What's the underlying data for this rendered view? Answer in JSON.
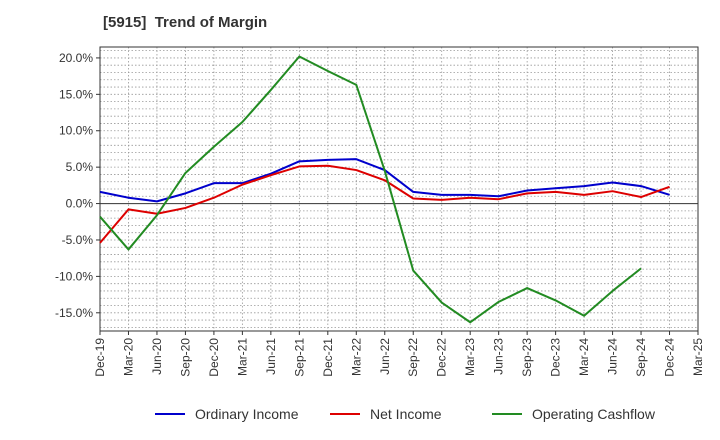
{
  "chart_data": {
    "type": "line",
    "title": "[5915]  Trend of Margin",
    "xlabel": "",
    "ylabel": "",
    "ylim": [
      -17.5,
      21.5
    ],
    "y_ticks": [
      "20.0%",
      "15.0%",
      "10.0%",
      "5.0%",
      "0.0%",
      "-5.0%",
      "-10.0%",
      "-15.0%"
    ],
    "y_tick_values": [
      20,
      15,
      10,
      5,
      0,
      -5,
      -10,
      -15
    ],
    "grid": true,
    "legend_position": "bottom",
    "categories": [
      "Dec-19",
      "Mar-20",
      "Jun-20",
      "Sep-20",
      "Dec-20",
      "Mar-21",
      "Jun-21",
      "Sep-21",
      "Dec-21",
      "Mar-22",
      "Jun-22",
      "Sep-22",
      "Dec-22",
      "Mar-23",
      "Jun-23",
      "Sep-23",
      "Dec-23",
      "Mar-24",
      "Jun-24",
      "Sep-24",
      "Dec-24",
      "Mar-25"
    ],
    "series": [
      {
        "name": "Ordinary Income",
        "color": "#0000cc",
        "values": [
          1.6,
          0.8,
          0.3,
          1.4,
          2.8,
          2.8,
          4.1,
          5.8,
          6.0,
          6.1,
          4.6,
          1.6,
          1.2,
          1.2,
          1.0,
          1.8,
          2.1,
          2.4,
          2.9,
          2.4,
          1.2,
          null
        ]
      },
      {
        "name": "Net Income",
        "color": "#dd0000",
        "values": [
          -5.4,
          -0.8,
          -1.4,
          -0.6,
          0.8,
          2.6,
          3.9,
          5.1,
          5.2,
          4.6,
          3.2,
          0.7,
          0.5,
          0.8,
          0.6,
          1.4,
          1.6,
          1.2,
          1.7,
          0.9,
          2.3,
          null
        ]
      },
      {
        "name": "Operating Cashflow",
        "color": "#228b22",
        "values": [
          -1.8,
          -6.3,
          -1.6,
          4.2,
          7.8,
          11.2,
          15.6,
          20.2,
          18.2,
          16.3,
          4.5,
          -9.2,
          -13.6,
          -16.3,
          -13.5,
          -11.6,
          -13.3,
          -15.4,
          -12.0,
          -8.9,
          null,
          null
        ]
      }
    ]
  }
}
